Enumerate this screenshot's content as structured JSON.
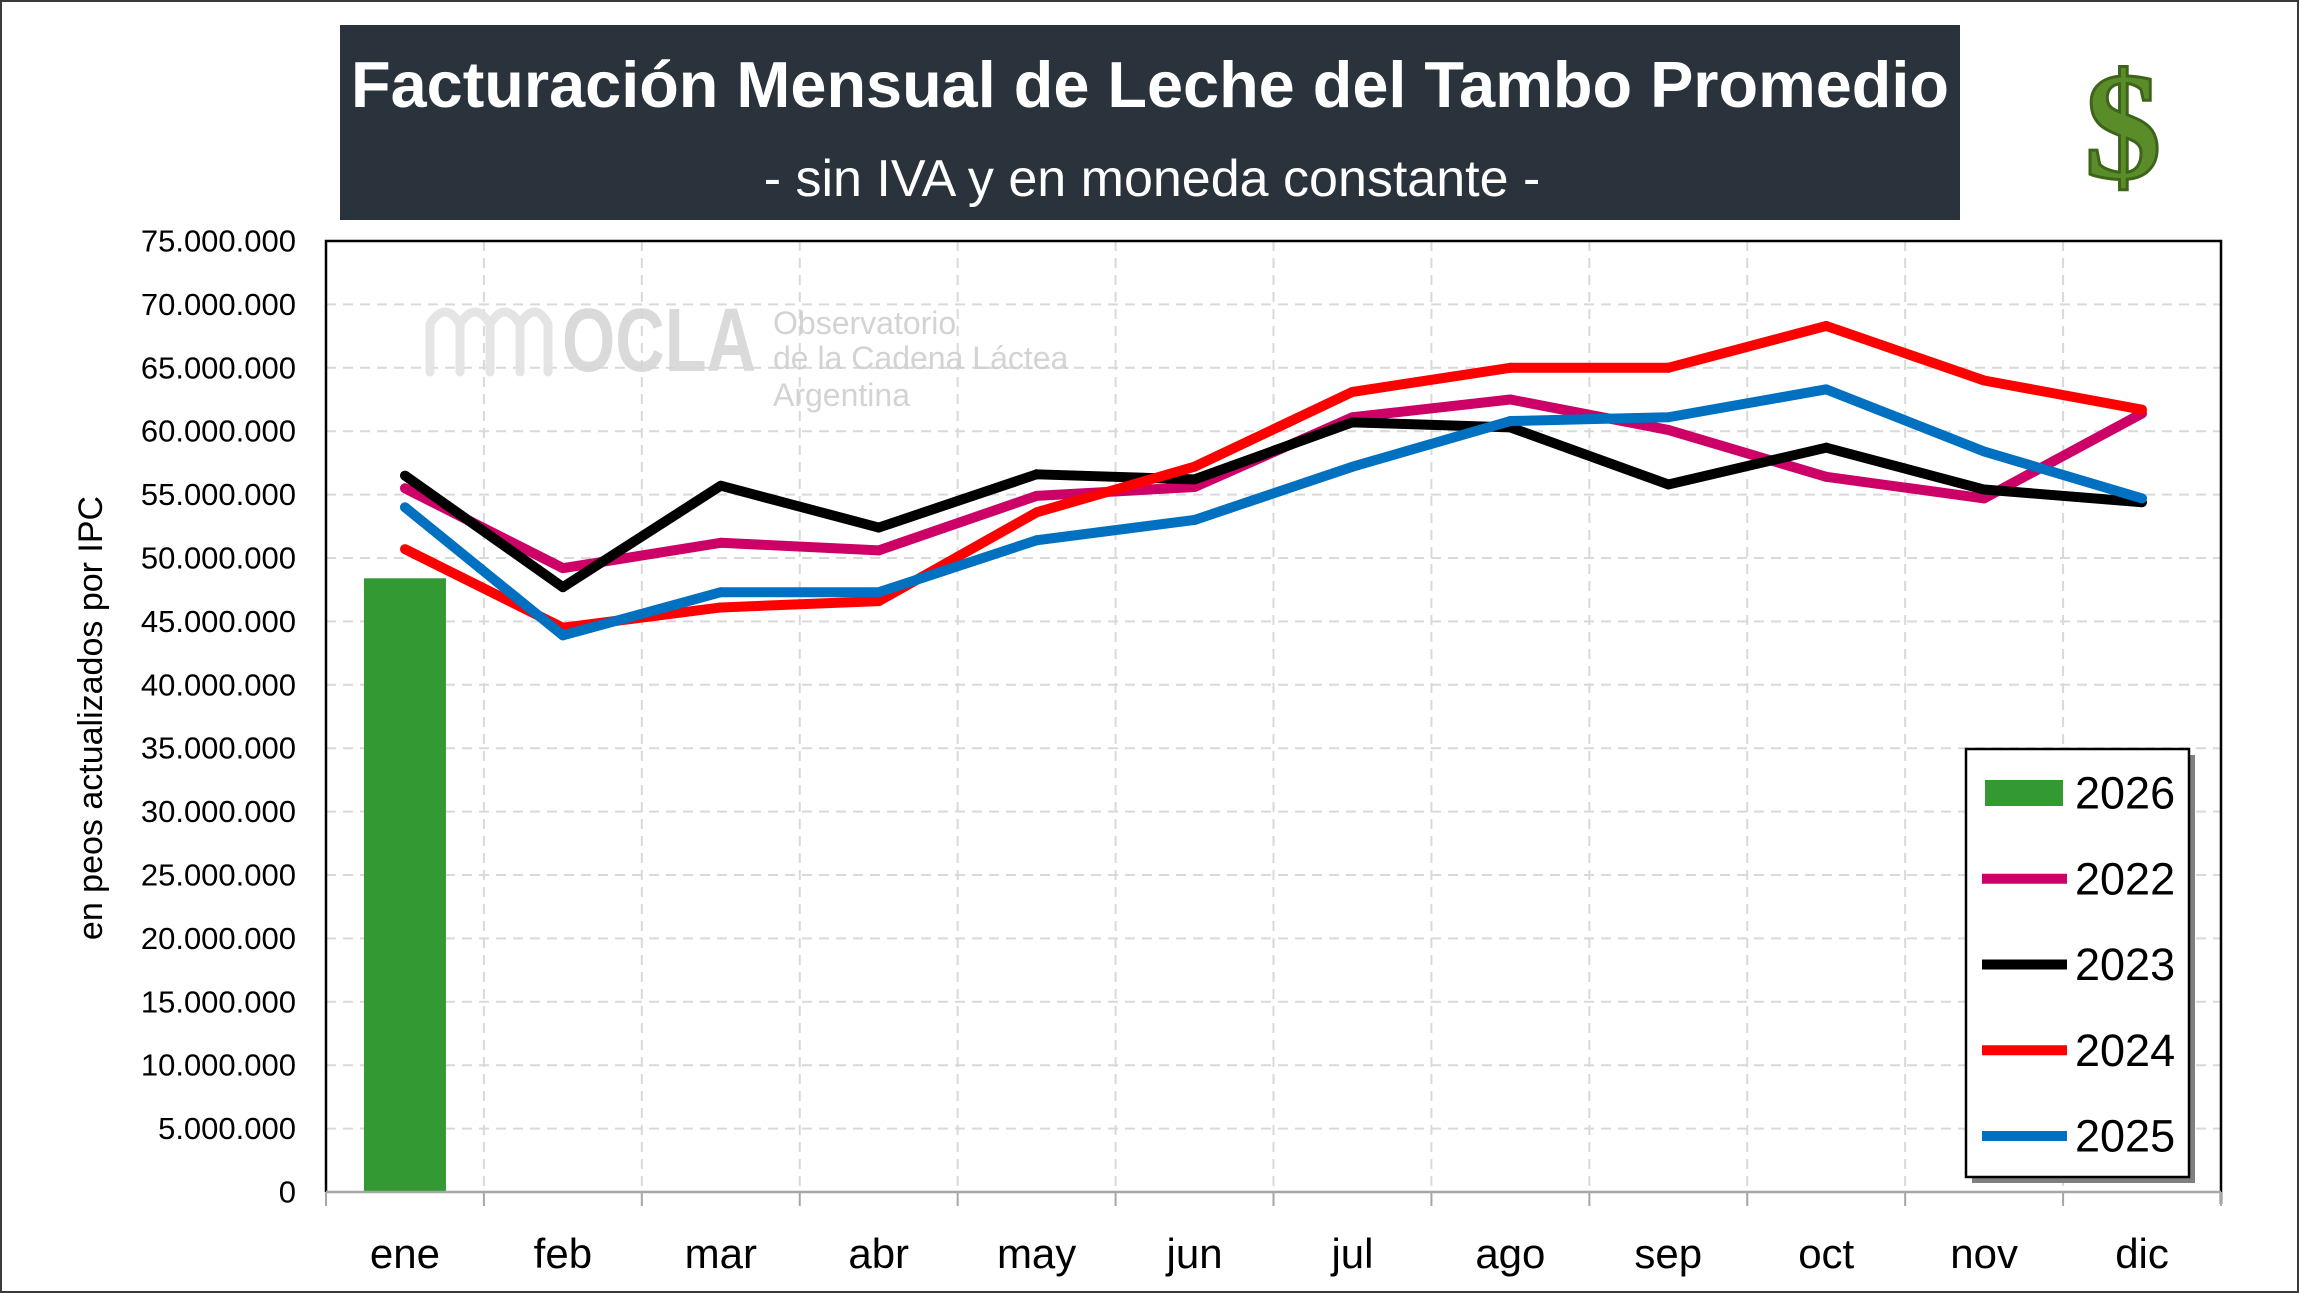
{
  "currency_symbol": "$",
  "icons": {
    "currency": "dollar-icon",
    "logo": "ocla-logo"
  },
  "watermark": {
    "brand": "OCLA",
    "line1": "Observatorio",
    "line2": "de la Cadena Láctea",
    "line3": "Argentina"
  },
  "colors": {
    "title_box": "#2a333c",
    "title_text": "#ffffff",
    "currency_icon": "#5b8c2a",
    "watermark": "#d0d0d0"
  },
  "chart_data": {
    "type": "line",
    "title": "Facturación Mensual de Leche del Tambo Promedio",
    "subtitle": "- sin IVA y en moneda constante -",
    "xlabel": "",
    "ylabel": "en peos actualizados por IPC",
    "categories": [
      "ene",
      "feb",
      "mar",
      "abr",
      "may",
      "jun",
      "jul",
      "ago",
      "sep",
      "oct",
      "nov",
      "dic"
    ],
    "ylim": [
      0,
      75000000
    ],
    "yticks": [
      0,
      5000000,
      10000000,
      15000000,
      20000000,
      25000000,
      30000000,
      35000000,
      40000000,
      45000000,
      50000000,
      55000000,
      60000000,
      65000000,
      70000000,
      75000000
    ],
    "ytick_labels": [
      "0",
      "5.000.000",
      "10.000.000",
      "15.000.000",
      "20.000.000",
      "25.000.000",
      "30.000.000",
      "35.000.000",
      "40.000.000",
      "45.000.000",
      "50.000.000",
      "55.000.000",
      "60.000.000",
      "65.000.000",
      "70.000.000",
      "75.000.000"
    ],
    "grid": true,
    "legend": {
      "position": "bottom-right"
    },
    "series": [
      {
        "name": "2026",
        "type": "bar",
        "color": "#339933",
        "values": [
          48400000,
          null,
          null,
          null,
          null,
          null,
          null,
          null,
          null,
          null,
          null,
          null
        ]
      },
      {
        "name": "2022",
        "type": "line",
        "color": "#cc0066",
        "values": [
          55500000,
          49200000,
          51200000,
          50600000,
          54900000,
          55600000,
          61100000,
          62500000,
          60100000,
          56400000,
          54700000,
          61400000
        ]
      },
      {
        "name": "2023",
        "type": "line",
        "color": "#000000",
        "values": [
          56500000,
          47700000,
          55700000,
          52400000,
          56600000,
          56200000,
          60700000,
          60300000,
          55800000,
          58700000,
          55400000,
          54400000
        ]
      },
      {
        "name": "2024",
        "type": "line",
        "color": "#ff0000",
        "values": [
          50700000,
          44500000,
          46100000,
          46600000,
          53600000,
          57200000,
          63100000,
          65000000,
          65000000,
          68300000,
          64000000,
          61700000
        ]
      },
      {
        "name": "2025",
        "type": "line",
        "color": "#0070c0",
        "values": [
          54000000,
          43900000,
          47300000,
          47300000,
          51400000,
          53000000,
          57200000,
          60800000,
          61100000,
          63300000,
          58400000,
          54700000
        ]
      }
    ]
  }
}
